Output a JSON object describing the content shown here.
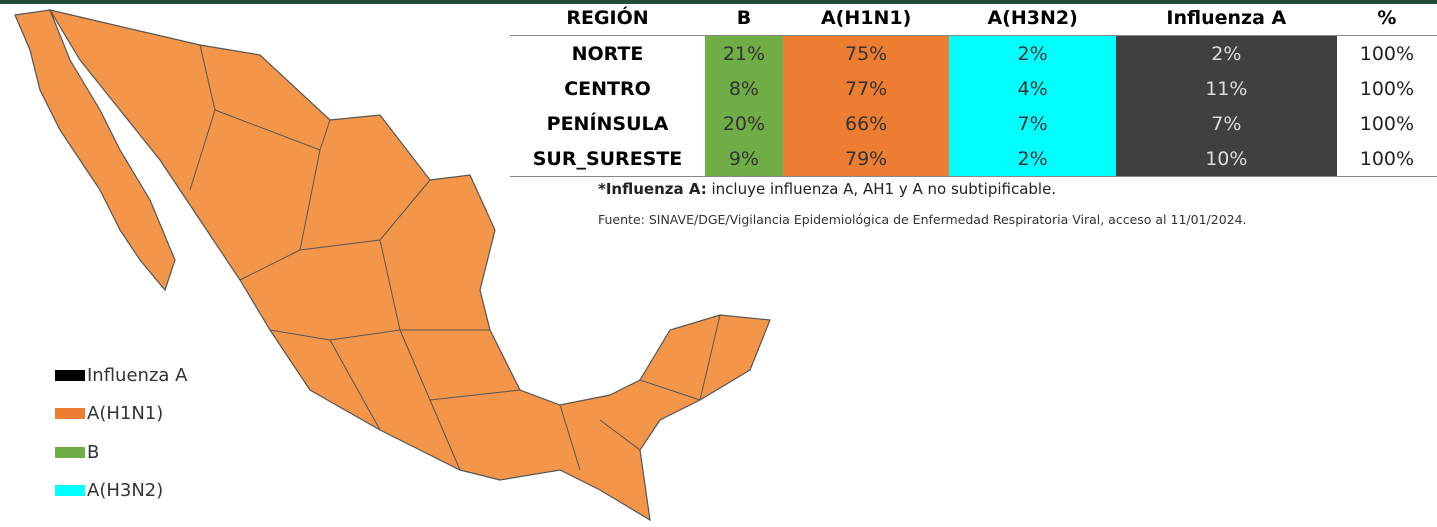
{
  "table": {
    "headers": [
      "REGIÓN",
      "B",
      "A(H1N1)",
      "A(H3N2)",
      "Influenza A",
      "%"
    ],
    "rows": [
      [
        "NORTE",
        "21%",
        "75%",
        "2%",
        "2%",
        "100%"
      ],
      [
        "CENTRO",
        "8%",
        "77%",
        "4%",
        "11%",
        "100%"
      ],
      [
        "PENÍNSULA",
        "20%",
        "66%",
        "7%",
        "7%",
        "100%"
      ],
      [
        "SUR_SURESTE",
        "9%",
        "79%",
        "2%",
        "10%",
        "100%"
      ]
    ]
  },
  "footnote": {
    "label": "*Influenza A:",
    "text": "incluye influenza A, AH1 y A no subtipificable."
  },
  "source": "Fuente: SINAVE/DGE/Vigilancia Epidemiológica de Enfermedad Respiratoria Viral, acceso al 11/01/2024.",
  "legend": [
    {
      "name": "Influenza A",
      "color": "#000000"
    },
    {
      "name": "A(H1N1)",
      "color": "#ed7d31"
    },
    {
      "name": "B",
      "color": "#70ad47"
    },
    {
      "name": "A(H3N2)",
      "color": "#00ffff"
    }
  ]
}
